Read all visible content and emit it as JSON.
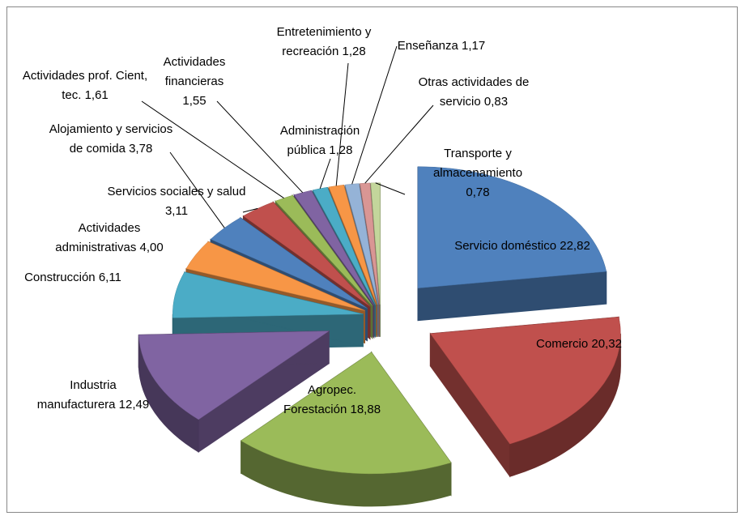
{
  "chart_data": {
    "type": "pie",
    "categories": [
      "Servicio doméstico",
      "Comercio",
      "Agropec. Forestación",
      "Industria manufacturera",
      "Construcción",
      "Actividades administrativas",
      "Alojamiento y servicios de comida",
      "Servicios sociales y salud",
      "Actividades prof. Cient, tec.",
      "Actividades financieras",
      "Administración pública",
      "Entretenimiento y recreación",
      "Enseñanza",
      "Otras actividades de servicio",
      "Transporte y almacenamiento"
    ],
    "values": [
      22.82,
      20.32,
      18.88,
      12.49,
      6.11,
      4.0,
      3.78,
      3.11,
      1.61,
      1.55,
      1.28,
      1.28,
      1.17,
      0.83,
      0.78
    ],
    "value_labels": [
      "22,82",
      "20,32",
      "18,88",
      "12,49",
      "6,11",
      "4,00",
      "3,78",
      "3,11",
      "1,61",
      "1,55",
      "1,28",
      "1,28",
      "1,17",
      "0,83",
      "0,78"
    ],
    "colors": [
      "#4f81bd",
      "#c0504d",
      "#9bbb59",
      "#8064a2",
      "#4bacc6",
      "#f79646",
      "#4f81bd",
      "#c0504d",
      "#9bbb59",
      "#8064a2",
      "#4bacc6",
      "#f79646",
      "#95b3d7",
      "#d99694",
      "#c3d69b"
    ]
  }
}
